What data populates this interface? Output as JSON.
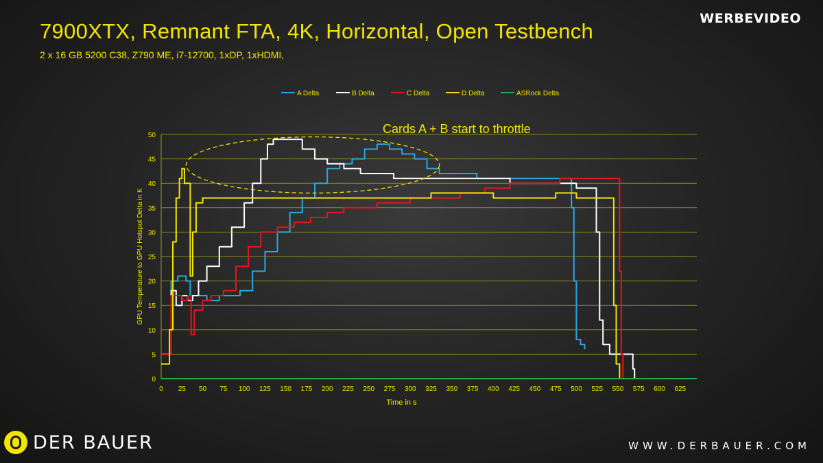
{
  "header": {
    "title": "7900XTX, Remnant FTA, 4K, Horizontal, Open Testbench",
    "subtitle": "2 x 16 GB 5200 C38, Z790 ME, i7-12700, 1xDP, 1xHDMI,"
  },
  "branding": {
    "top_right": "WERBEVIDEO",
    "bottom_left": "DER BAUER",
    "bottom_right": "WWW.DERBAUER.COM"
  },
  "chart_data": {
    "type": "line",
    "xlabel": "Time in s",
    "ylabel": "GPU Temperature to GPU Hotspot Delta in K",
    "xlim": [
      0,
      645
    ],
    "ylim": [
      0,
      50
    ],
    "xticks": [
      0,
      25,
      50,
      75,
      100,
      125,
      150,
      175,
      200,
      225,
      250,
      275,
      300,
      325,
      350,
      375,
      400,
      425,
      450,
      475,
      500,
      525,
      550,
      575,
      600,
      625
    ],
    "yticks": [
      0,
      5,
      10,
      15,
      20,
      25,
      30,
      35,
      40,
      45,
      50
    ],
    "grid": true,
    "legend_position": "top",
    "annotation": "Cards A + B start to throttle",
    "annotation_ellipse": {
      "x_range": [
        30,
        335
      ],
      "y_range": [
        38,
        49.5
      ]
    },
    "series": [
      {
        "name": "A Delta",
        "color": "#2aa7e0",
        "points": [
          [
            0,
            5
          ],
          [
            8,
            5
          ],
          [
            12,
            20
          ],
          [
            20,
            21
          ],
          [
            30,
            20
          ],
          [
            35,
            17
          ],
          [
            45,
            17
          ],
          [
            55,
            16
          ],
          [
            70,
            17
          ],
          [
            85,
            17
          ],
          [
            95,
            18
          ],
          [
            110,
            22
          ],
          [
            125,
            26
          ],
          [
            140,
            30
          ],
          [
            155,
            34
          ],
          [
            170,
            37
          ],
          [
            185,
            40
          ],
          [
            200,
            43
          ],
          [
            215,
            44
          ],
          [
            230,
            45
          ],
          [
            245,
            47
          ],
          [
            260,
            48
          ],
          [
            275,
            47
          ],
          [
            290,
            46
          ],
          [
            305,
            45
          ],
          [
            320,
            43
          ],
          [
            335,
            42
          ],
          [
            350,
            42
          ],
          [
            365,
            42
          ],
          [
            380,
            41
          ],
          [
            400,
            41
          ],
          [
            420,
            41
          ],
          [
            440,
            41
          ],
          [
            460,
            41
          ],
          [
            480,
            41
          ],
          [
            490,
            41
          ],
          [
            494,
            35
          ],
          [
            497,
            20
          ],
          [
            500,
            8
          ],
          [
            505,
            7
          ],
          [
            510,
            6
          ]
        ]
      },
      {
        "name": "B Delta",
        "color": "#ffffff",
        "points": [
          [
            0,
            5
          ],
          [
            8,
            5
          ],
          [
            12,
            18
          ],
          [
            18,
            15
          ],
          [
            25,
            17
          ],
          [
            32,
            16
          ],
          [
            38,
            17
          ],
          [
            45,
            20
          ],
          [
            55,
            23
          ],
          [
            70,
            27
          ],
          [
            85,
            31
          ],
          [
            100,
            36
          ],
          [
            110,
            40
          ],
          [
            120,
            45
          ],
          [
            128,
            48
          ],
          [
            135,
            49
          ],
          [
            155,
            49
          ],
          [
            170,
            47
          ],
          [
            185,
            45
          ],
          [
            200,
            44
          ],
          [
            220,
            43
          ],
          [
            240,
            42
          ],
          [
            260,
            42
          ],
          [
            280,
            41
          ],
          [
            300,
            41
          ],
          [
            330,
            41
          ],
          [
            360,
            41
          ],
          [
            390,
            41
          ],
          [
            420,
            40
          ],
          [
            450,
            40
          ],
          [
            480,
            40
          ],
          [
            500,
            39
          ],
          [
            520,
            39
          ],
          [
            524,
            30
          ],
          [
            528,
            12
          ],
          [
            532,
            7
          ],
          [
            540,
            5
          ],
          [
            565,
            5
          ],
          [
            568,
            2
          ],
          [
            570,
            0
          ]
        ]
      },
      {
        "name": "C Delta",
        "color": "#e8141c",
        "points": [
          [
            0,
            5
          ],
          [
            8,
            5
          ],
          [
            12,
            17
          ],
          [
            18,
            17
          ],
          [
            25,
            16
          ],
          [
            32,
            17
          ],
          [
            36,
            9
          ],
          [
            40,
            14
          ],
          [
            50,
            16
          ],
          [
            60,
            17
          ],
          [
            75,
            18
          ],
          [
            90,
            23
          ],
          [
            105,
            27
          ],
          [
            120,
            30
          ],
          [
            140,
            31
          ],
          [
            160,
            32
          ],
          [
            180,
            33
          ],
          [
            200,
            34
          ],
          [
            220,
            35
          ],
          [
            240,
            35
          ],
          [
            260,
            36
          ],
          [
            280,
            36
          ],
          [
            300,
            37
          ],
          [
            330,
            37
          ],
          [
            360,
            38
          ],
          [
            390,
            39
          ],
          [
            420,
            40
          ],
          [
            450,
            40
          ],
          [
            480,
            41
          ],
          [
            510,
            41
          ],
          [
            530,
            41
          ],
          [
            548,
            41
          ],
          [
            552,
            22
          ],
          [
            554,
            5
          ],
          [
            556,
            0
          ]
        ]
      },
      {
        "name": "D Delta",
        "color": "#f2e600",
        "points": [
          [
            0,
            3
          ],
          [
            6,
            3
          ],
          [
            10,
            10
          ],
          [
            14,
            28
          ],
          [
            18,
            37
          ],
          [
            22,
            41
          ],
          [
            25,
            43
          ],
          [
            28,
            40
          ],
          [
            32,
            40
          ],
          [
            35,
            21
          ],
          [
            38,
            30
          ],
          [
            42,
            36
          ],
          [
            50,
            37
          ],
          [
            75,
            37
          ],
          [
            100,
            37
          ],
          [
            125,
            37
          ],
          [
            150,
            37
          ],
          [
            175,
            37
          ],
          [
            200,
            37
          ],
          [
            225,
            37
          ],
          [
            250,
            37
          ],
          [
            275,
            37
          ],
          [
            300,
            37
          ],
          [
            325,
            38
          ],
          [
            350,
            38
          ],
          [
            375,
            38
          ],
          [
            400,
            37
          ],
          [
            425,
            37
          ],
          [
            450,
            37
          ],
          [
            475,
            38
          ],
          [
            500,
            37
          ],
          [
            525,
            37
          ],
          [
            540,
            37
          ],
          [
            545,
            15
          ],
          [
            548,
            3
          ],
          [
            550,
            3
          ],
          [
            552,
            0
          ]
        ]
      },
      {
        "name": "ASRock Delta",
        "color": "#1fb04a",
        "points": [
          [
            0,
            0
          ],
          [
            645,
            0
          ]
        ]
      }
    ]
  }
}
